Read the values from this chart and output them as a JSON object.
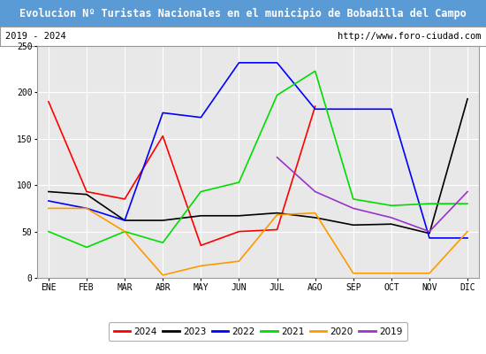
{
  "title": "Evolucion Nº Turistas Nacionales en el municipio de Bobadilla del Campo",
  "subtitle_left": "2019 - 2024",
  "subtitle_right": "http://www.foro-ciudad.com",
  "title_bg_color": "#5b9bd5",
  "title_text_color": "#ffffff",
  "subtitle_bg_color": "#ffffff",
  "plot_bg_color": "#e8e8e8",
  "months": [
    "ENE",
    "FEB",
    "MAR",
    "ABR",
    "MAY",
    "JUN",
    "JUL",
    "AGO",
    "SEP",
    "OCT",
    "NOV",
    "DIC"
  ],
  "ylim": [
    0,
    250
  ],
  "yticks": [
    0,
    50,
    100,
    150,
    200,
    250
  ],
  "series": {
    "2024": {
      "color": "#ff0000",
      "data": [
        190,
        93,
        85,
        153,
        35,
        50,
        52,
        185,
        null,
        null,
        null,
        null
      ]
    },
    "2023": {
      "color": "#000000",
      "data": [
        93,
        90,
        62,
        62,
        67,
        67,
        70,
        65,
        57,
        58,
        48,
        193
      ]
    },
    "2022": {
      "color": "#0000ff",
      "data": [
        83,
        75,
        62,
        178,
        173,
        232,
        232,
        182,
        182,
        182,
        43,
        43
      ]
    },
    "2021": {
      "color": "#00dd00",
      "data": [
        50,
        33,
        50,
        38,
        93,
        103,
        197,
        223,
        85,
        78,
        80,
        80
      ]
    },
    "2020": {
      "color": "#ff9900",
      "data": [
        75,
        75,
        50,
        3,
        13,
        18,
        68,
        70,
        5,
        5,
        5,
        50
      ]
    },
    "2019": {
      "color": "#9933cc",
      "data": [
        null,
        null,
        null,
        null,
        null,
        null,
        130,
        93,
        75,
        65,
        50,
        93
      ]
    }
  },
  "legend_order": [
    "2024",
    "2023",
    "2022",
    "2021",
    "2020",
    "2019"
  ]
}
